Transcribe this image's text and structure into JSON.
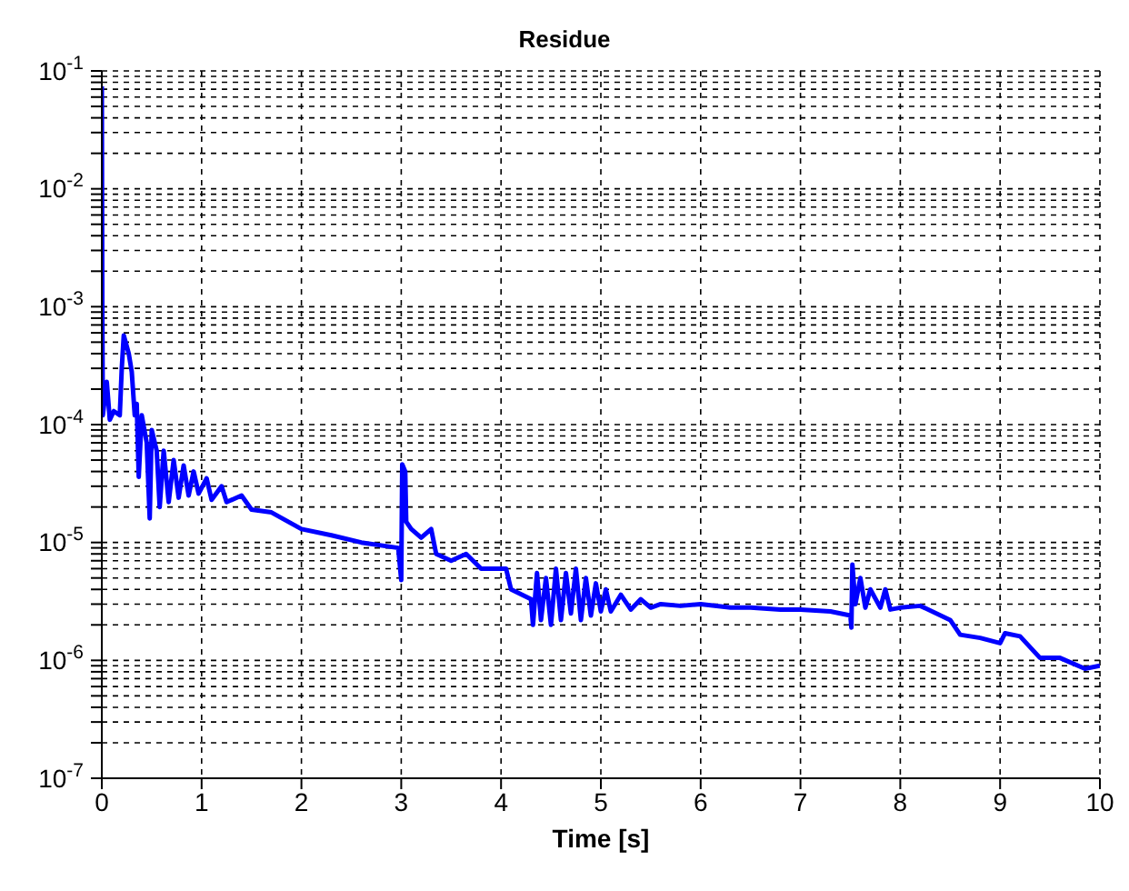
{
  "chart_data": {
    "type": "line",
    "title": "Residue",
    "xlabel": "Time [s]",
    "log": "y",
    "grid": true,
    "marker": "none",
    "line_style": "solid",
    "legend": false,
    "xlim": [
      0,
      10
    ],
    "xticks": [
      0,
      1,
      2,
      3,
      4,
      5,
      6,
      7,
      8,
      9,
      10
    ],
    "ylim": [
      1e-07,
      0.1
    ],
    "yticks": [
      {
        "value": 1e-07,
        "label": "10$^{-7}$"
      },
      {
        "value": 2e-07,
        "label": null
      },
      {
        "value": 3e-07,
        "label": null
      },
      {
        "value": 4e-07,
        "label": null
      },
      {
        "value": 5e-07,
        "label": null
      },
      {
        "value": 6e-07,
        "label": null
      },
      {
        "value": 7e-07,
        "label": null
      },
      {
        "value": 8e-07,
        "label": null
      },
      {
        "value": 9e-07,
        "label": null
      },
      {
        "value": 1e-06,
        "label": "10$^{-6}$"
      },
      {
        "value": 2e-06,
        "label": null
      },
      {
        "value": 3e-06,
        "label": null
      },
      {
        "value": 4e-06,
        "label": null
      },
      {
        "value": 5e-06,
        "label": null
      },
      {
        "value": 6e-06,
        "label": null
      },
      {
        "value": 7e-06,
        "label": null
      },
      {
        "value": 8e-06,
        "label": null
      },
      {
        "value": 9e-06,
        "label": null
      },
      {
        "value": 1e-05,
        "label": "10$^{-5}$"
      },
      {
        "value": 2e-05,
        "label": null
      },
      {
        "value": 3e-05,
        "label": null
      },
      {
        "value": 4e-05,
        "label": null
      },
      {
        "value": 5e-05,
        "label": null
      },
      {
        "value": 6e-05,
        "label": null
      },
      {
        "value": 7e-05,
        "label": null
      },
      {
        "value": 8e-05,
        "label": null
      },
      {
        "value": 9e-05,
        "label": null
      },
      {
        "value": 0.0001,
        "label": "10$^{-4}$"
      },
      {
        "value": 0.0002,
        "label": null
      },
      {
        "value": 0.0003,
        "label": null
      },
      {
        "value": 0.0004,
        "label": null
      },
      {
        "value": 0.0005,
        "label": null
      },
      {
        "value": 0.0006,
        "label": null
      },
      {
        "value": 0.0007,
        "label": null
      },
      {
        "value": 0.0008,
        "label": null
      },
      {
        "value": 0.0009,
        "label": null
      },
      {
        "value": 0.001,
        "label": "10$^{-3}$"
      },
      {
        "value": 0.002,
        "label": null
      },
      {
        "value": 0.003,
        "label": null
      },
      {
        "value": 0.004,
        "label": null
      },
      {
        "value": 0.005,
        "label": null
      },
      {
        "value": 0.006,
        "label": null
      },
      {
        "value": 0.007,
        "label": null
      },
      {
        "value": 0.008,
        "label": null
      },
      {
        "value": 0.009,
        "label": null
      },
      {
        "value": 0.01,
        "label": "10$^{-2}$"
      },
      {
        "value": 0.02,
        "label": null
      },
      {
        "value": 0.03,
        "label": null
      },
      {
        "value": 0.04,
        "label": null
      },
      {
        "value": 0.05,
        "label": null
      },
      {
        "value": 0.06,
        "label": null
      },
      {
        "value": 0.07,
        "label": null
      },
      {
        "value": 0.08,
        "label": null
      },
      {
        "value": 0.09,
        "label": null
      },
      {
        "value": 0.1,
        "label": "10$^{-1}$"
      }
    ],
    "series": [
      {
        "color": "#0000ff",
        "x": [
          0,
          0.005,
          0.01,
          0.05,
          0.08,
          0.12,
          0.18,
          0.2,
          0.22,
          0.27,
          0.3,
          0.33,
          0.35,
          0.37,
          0.4,
          0.45,
          0.48,
          0.5,
          0.55,
          0.58,
          0.62,
          0.67,
          0.72,
          0.77,
          0.82,
          0.87,
          0.92,
          0.97,
          1.05,
          1.1,
          1.2,
          1.25,
          1.4,
          1.5,
          1.7,
          2.0,
          2.3,
          2.6,
          2.97,
          3.0,
          3.01,
          3.04,
          3.05,
          3.1,
          3.2,
          3.3,
          3.35,
          3.5,
          3.65,
          3.8,
          4.05,
          4.1,
          4.3,
          4.32,
          4.36,
          4.4,
          4.45,
          4.5,
          4.55,
          4.6,
          4.65,
          4.7,
          4.75,
          4.8,
          4.85,
          4.9,
          4.95,
          5.0,
          5.05,
          5.1,
          5.2,
          5.3,
          5.4,
          5.5,
          5.6,
          5.8,
          6.0,
          6.3,
          6.5,
          6.8,
          7.0,
          7.3,
          7.5,
          7.51,
          7.52,
          7.55,
          7.6,
          7.65,
          7.7,
          7.8,
          7.85,
          7.9,
          8.0,
          8.2,
          8.5,
          8.6,
          8.8,
          9.0,
          9.05,
          9.2,
          9.4,
          9.6,
          9.85,
          10
        ],
        "values": [
          0.074,
          0.001,
          0.00012,
          0.00023,
          0.00011,
          0.00013,
          0.00012,
          0.0003,
          0.00057,
          0.0004,
          0.00028,
          0.00012,
          0.00015,
          3.6e-05,
          0.00012,
          7e-05,
          1.6e-05,
          9e-05,
          6e-05,
          2e-05,
          6e-05,
          2.2e-05,
          5e-05,
          2.4e-05,
          4.5e-05,
          2.5e-05,
          4e-05,
          2.6e-05,
          3.5e-05,
          2.3e-05,
          3e-05,
          2.2e-05,
          2.5e-05,
          1.9e-05,
          1.8e-05,
          1.3e-05,
          1.15e-05,
          1e-05,
          9e-06,
          4.8e-06,
          4.6e-05,
          4e-05,
          1.5e-05,
          1.3e-05,
          1.1e-05,
          1.3e-05,
          8e-06,
          7e-06,
          8e-06,
          6e-06,
          6e-06,
          4e-06,
          3.3e-06,
          2e-06,
          5.5e-06,
          2.2e-06,
          5e-06,
          2e-06,
          6e-06,
          2.2e-06,
          5.5e-06,
          2.5e-06,
          6e-06,
          2.2e-06,
          5e-06,
          2.4e-06,
          4.5e-06,
          2.6e-06,
          4e-06,
          2.6e-06,
          3.6e-06,
          2.7e-06,
          3.3e-06,
          2.8e-06,
          3e-06,
          2.9e-06,
          3e-06,
          2.8e-06,
          2.8e-06,
          2.7e-06,
          2.7e-06,
          2.6e-06,
          2.4e-06,
          1.9e-06,
          6.5e-06,
          3e-06,
          5e-06,
          2.8e-06,
          4e-06,
          2.8e-06,
          4e-06,
          2.7e-06,
          2.8e-06,
          2.9e-06,
          2.2e-06,
          1.65e-06,
          1.55e-06,
          1.4e-06,
          1.7e-06,
          1.6e-06,
          1.05e-06,
          1.05e-06,
          8.5e-07,
          9e-07
        ]
      }
    ]
  }
}
